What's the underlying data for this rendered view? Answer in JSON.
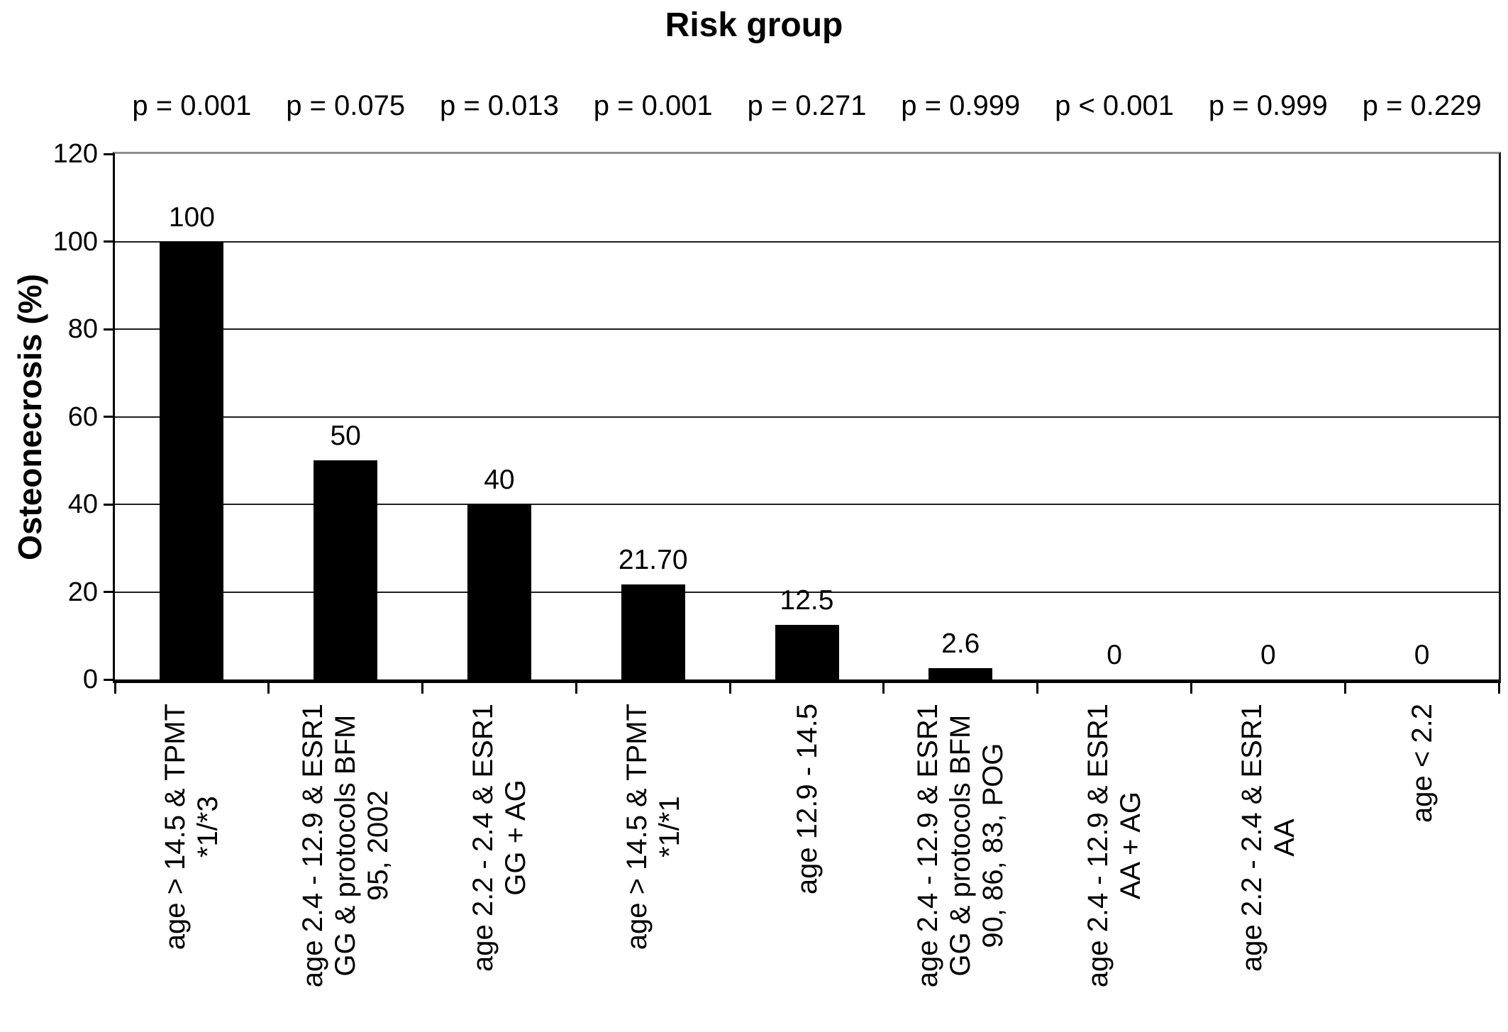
{
  "chart_data": {
    "type": "bar",
    "title": "Risk group",
    "ylabel": "Osteonecrosis (%)",
    "xlabel": "",
    "ylim": [
      0,
      120
    ],
    "yticks": [
      0,
      20,
      40,
      60,
      80,
      100,
      120
    ],
    "ytick_labels": [
      "0",
      "20",
      "40",
      "60",
      "80",
      "100",
      "120"
    ],
    "grid": true,
    "legend": "none",
    "bar_color": "#000000",
    "categories": [
      "age > 14.5 & TPMT\n*1/*3",
      "age 2.4 - 12.9 & ESR1\nGG & protocols BFM\n95, 2002",
      "age 2.2 - 2.4 & ESR1\nGG + AG",
      "age > 14.5 & TPMT\n*1/*1",
      "age 12.9 - 14.5",
      "age 2.4 - 12.9 & ESR1\nGG & protocols BFM\n90, 86, 83, POG",
      "age 2.4 - 12.9 & ESR1\nAA + AG",
      "age 2.2 - 2.4 & ESR1\nAA",
      "age < 2.2"
    ],
    "values": [
      100,
      50,
      40,
      21.7,
      12.5,
      2.6,
      0,
      0,
      0
    ],
    "value_labels": [
      "100",
      "50",
      "40",
      "21.70",
      "12.5",
      "2.6",
      "0",
      "0",
      "0"
    ],
    "p_values": [
      "p = 0.001",
      "p = 0.075",
      "p = 0.013",
      "p = 0.001",
      "p = 0.271",
      "p = 0.999",
      "p < 0.001",
      "p = 0.999",
      "p = 0.229"
    ]
  }
}
